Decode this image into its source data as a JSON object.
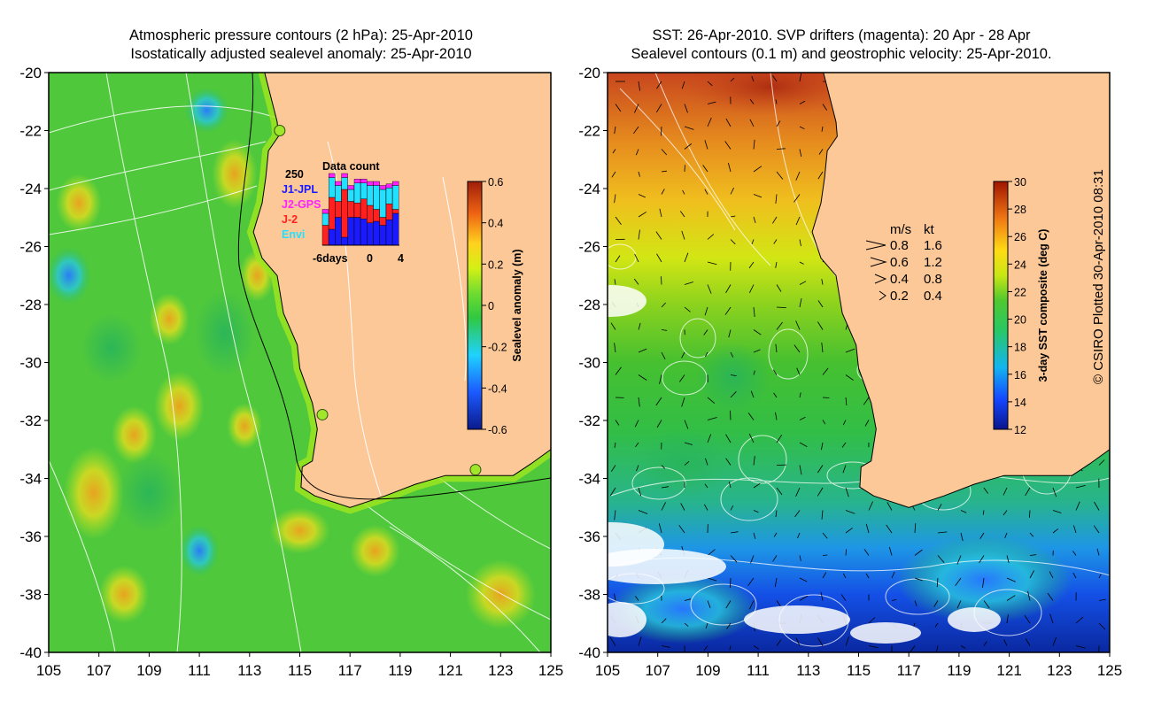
{
  "left_panel": {
    "title_line1": "Atmospheric pressure contours (2 hPa): 25-Apr-2010",
    "title_line2": "Isostatically adjusted sealevel anomaly: 25-Apr-2010",
    "x_ticks": [
      "105",
      "107",
      "109",
      "111",
      "113",
      "115",
      "117",
      "119",
      "121",
      "123",
      "125"
    ],
    "y_ticks": [
      "-20",
      "-22",
      "-24",
      "-26",
      "-28",
      "-30",
      "-32",
      "-34",
      "-36",
      "-38",
      "-40"
    ],
    "colorbar": {
      "label": "Sealevel anomaly (m)",
      "ticks": [
        "0.6",
        "0.4",
        "0.2",
        "0",
        "-0.2",
        "-0.4",
        "-0.6"
      ],
      "range": [
        -0.6,
        0.6
      ]
    },
    "inset": {
      "title": "Data count",
      "max_label": "250",
      "legend": [
        {
          "name": "J1-JPL",
          "color": "#1a1aff"
        },
        {
          "name": "J2-GPS",
          "color": "#ff22ff"
        },
        {
          "name": "J-2",
          "color": "#ff2020"
        },
        {
          "name": "Envi",
          "color": "#22e0ff"
        }
      ],
      "x_labels": [
        "-6days",
        "0",
        "4"
      ]
    }
  },
  "right_panel": {
    "title_line1": "SST: 26-Apr-2010. SVP drifters (magenta): 20 Apr - 28 Apr",
    "title_line2": "Sealevel contours (0.1 m) and geostrophic velocity: 25-Apr-2010.",
    "x_ticks": [
      "105",
      "107",
      "109",
      "111",
      "113",
      "115",
      "117",
      "119",
      "121",
      "123",
      "125"
    ],
    "y_ticks": [
      "-20",
      "-22",
      "-24",
      "-26",
      "-28",
      "-30",
      "-32",
      "-34",
      "-36",
      "-38",
      "-40"
    ],
    "colorbar": {
      "label": "3-day SST composite (deg C)",
      "ticks": [
        "30",
        "28",
        "26",
        "24",
        "22",
        "20",
        "18",
        "16",
        "14",
        "12"
      ],
      "range": [
        12,
        30
      ]
    },
    "velocity_legend": {
      "headers": [
        "m/s",
        "kt"
      ],
      "rows": [
        {
          "ms": "0.8",
          "kt": "1.6"
        },
        {
          "ms": "0.6",
          "kt": "1.2"
        },
        {
          "ms": "0.4",
          "kt": "0.8"
        },
        {
          "ms": "0.2",
          "kt": "0.4"
        }
      ]
    }
  },
  "credit": "© CSIRO Plotted 30-Apr-2010 08:31",
  "colors": {
    "land": "#fcc898",
    "sea_green": "#46c030",
    "sst_warm": "#c81e00",
    "sst_cold": "#0a2db4"
  }
}
